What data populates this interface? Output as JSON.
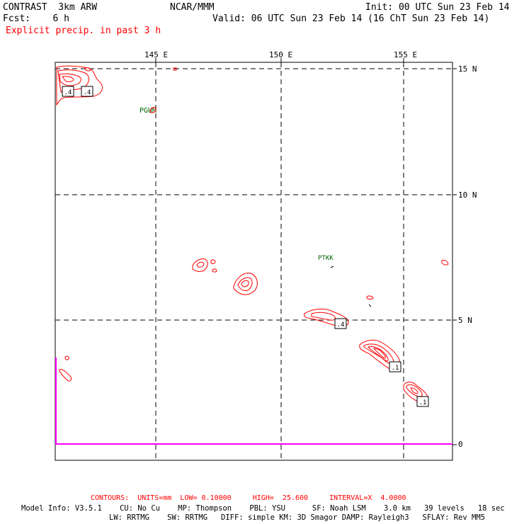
{
  "header": {
    "model": "CONTRAST  3km ARW",
    "center": "NCAR/MMM",
    "init": "Init: 00 UTC Sun 23 Feb 14",
    "fcst": "Fcst:    6 h",
    "valid": "Valid: 06 UTC Sun 23 Feb 14 (16 ChT Sun 23 Feb 14)",
    "field": "Explicit precip. in past 3 h"
  },
  "axes": {
    "lon_labels": [
      "145 E",
      "150 E",
      "155 E"
    ],
    "lat_labels": [
      "15 N",
      "10 N",
      "5 N"
    ],
    "bar_zero": "0"
  },
  "stations": [
    "PGUM",
    "PTKK"
  ],
  "contour_labels": [
    ".4",
    ".4",
    ".4",
    ".1",
    ".1"
  ],
  "footer": {
    "contours": "CONTOURS:  UNITS=mm  LOW= 0.10000     HIGH=  25.600     INTERVAL=X  4.0000",
    "model_info_1": "Model Info: V3.5.1    CU: No Cu    MP: Thompson    PBL: YSU      SF: Noah LSM    3.0 km   39 levels   18 sec",
    "model_info_2": "LW: RRTMG    SW: RRTMG   DIFF: simple KM: 3D Smagor DAMP: Rayleigh3   SFLAY: Rev MM5"
  },
  "colors": {
    "contour": "#ff0000",
    "station": "#006400",
    "bar": "#ff00ff",
    "grid": "#000000"
  }
}
